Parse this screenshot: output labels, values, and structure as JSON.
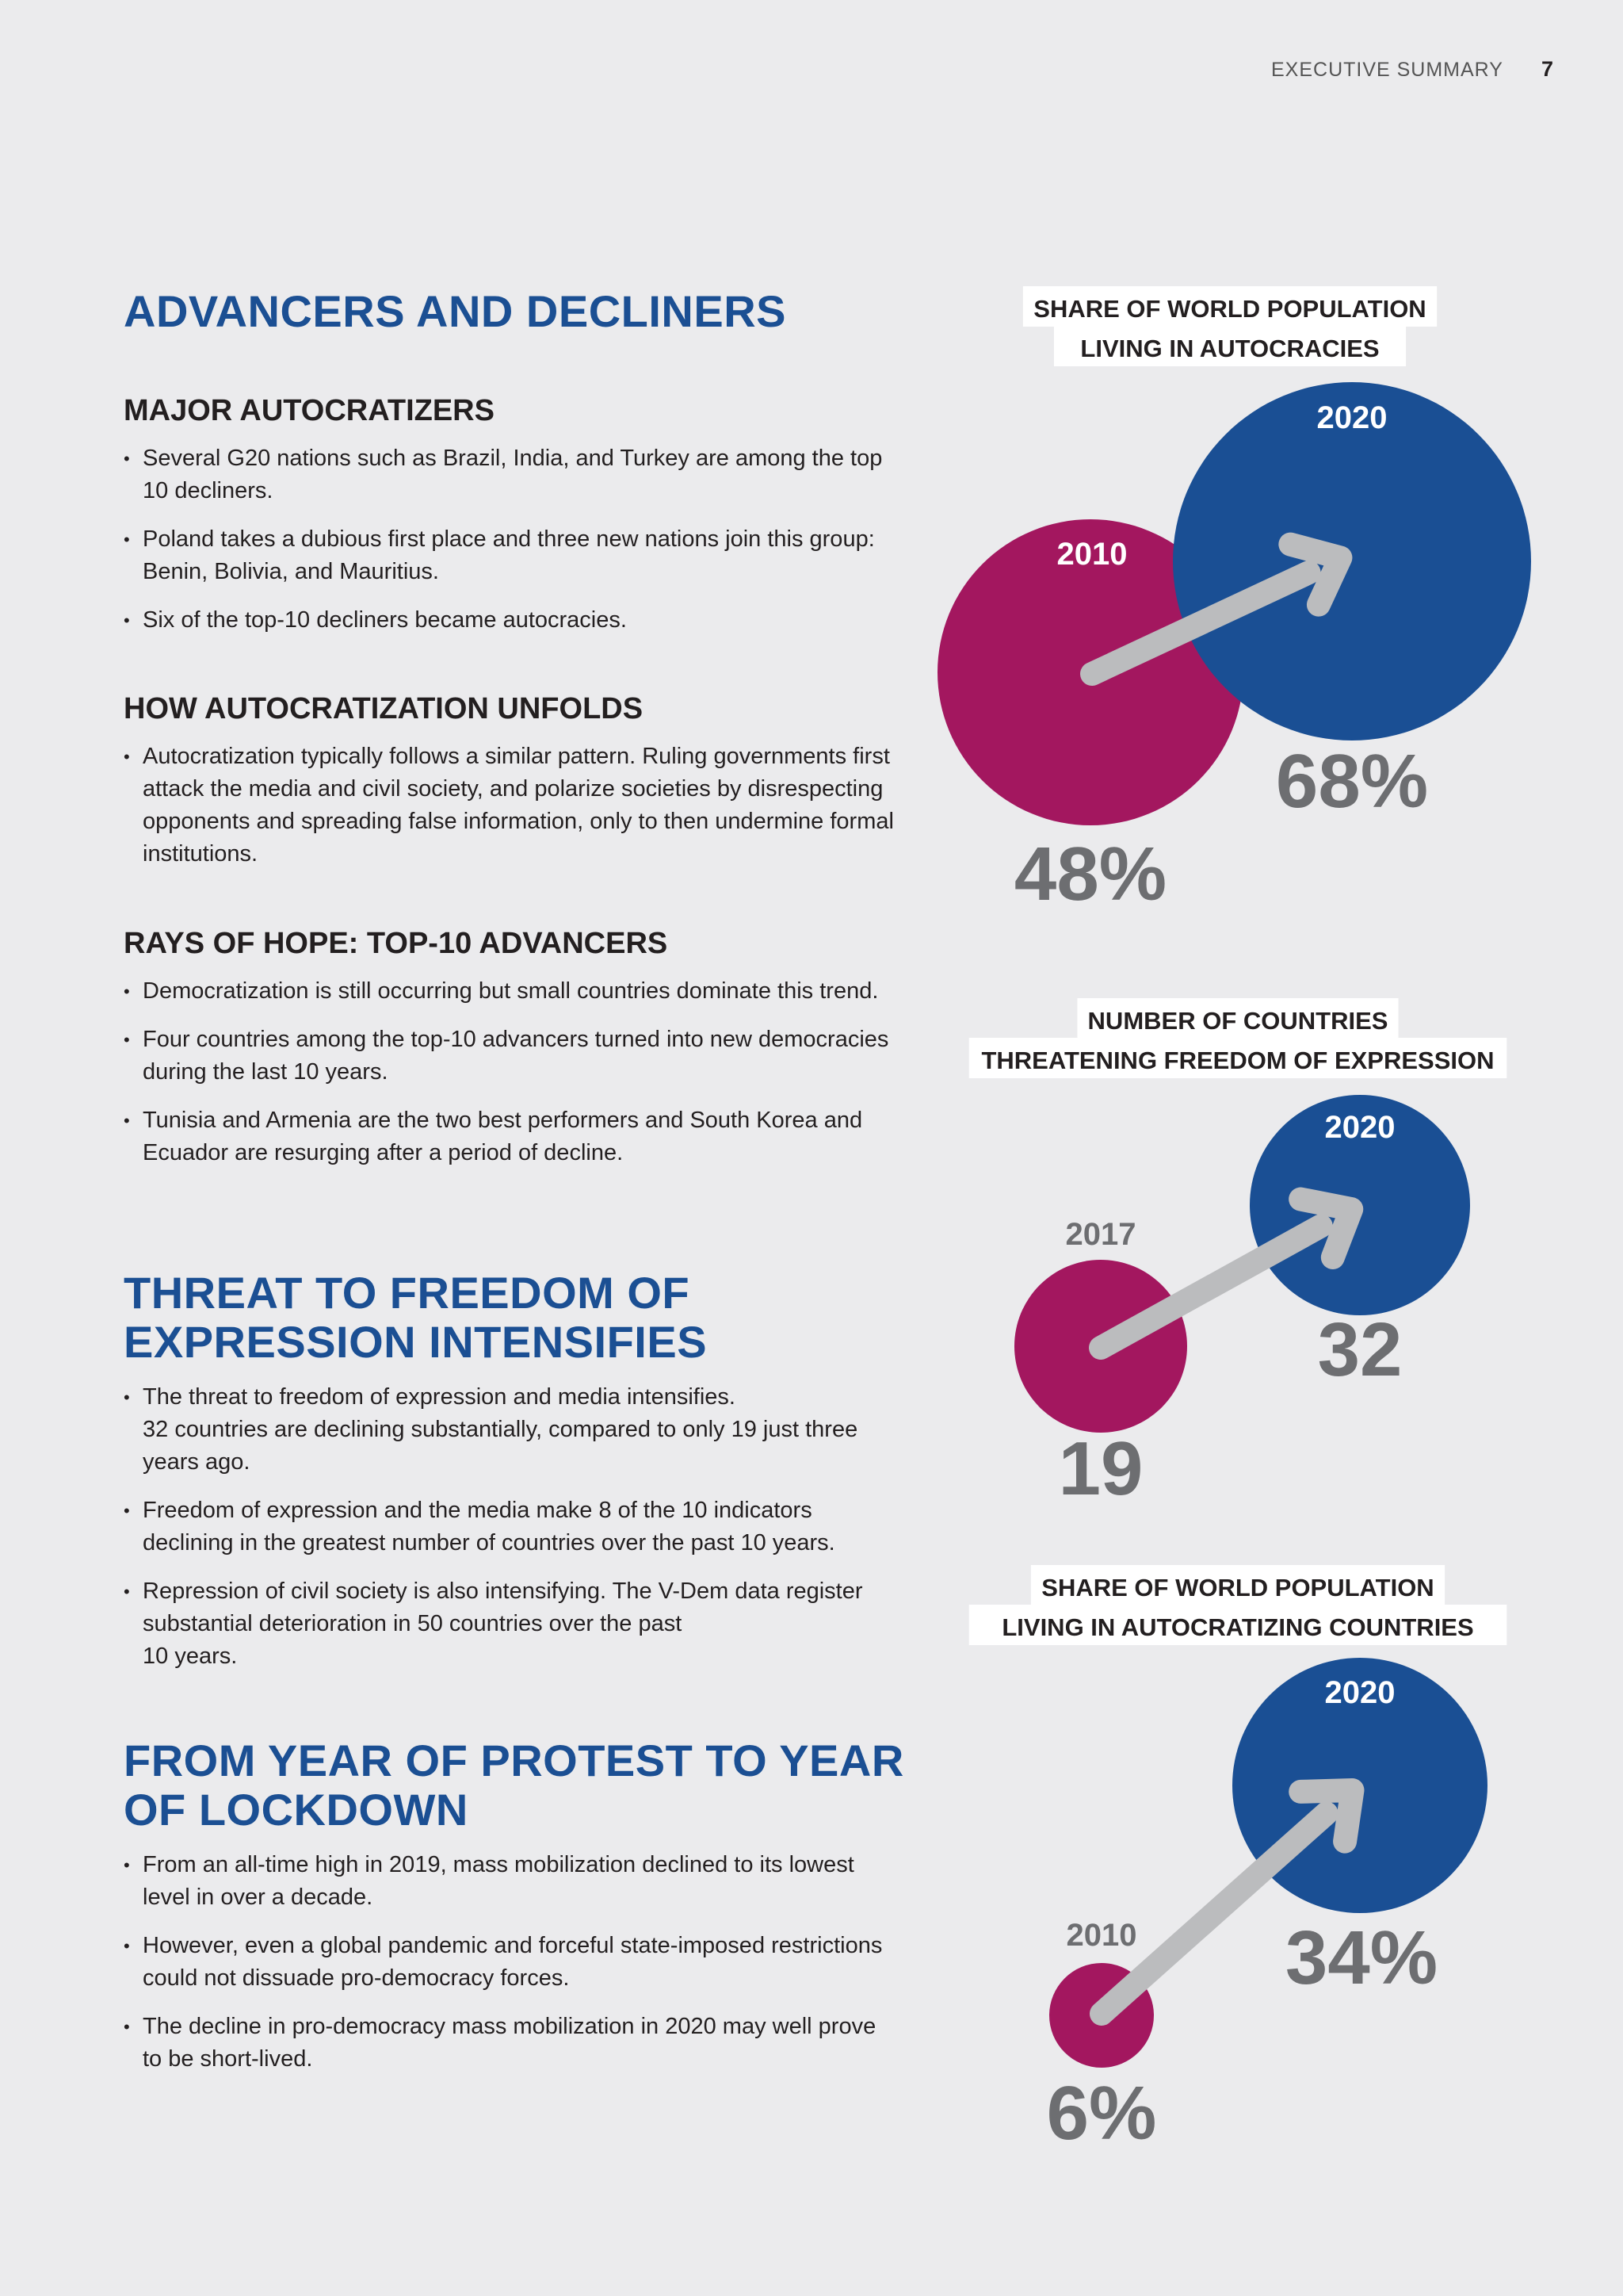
{
  "header": {
    "section": "EXECUTIVE SUMMARY",
    "page_number": "7"
  },
  "left": {
    "advancers": {
      "title": "ADVANCERS AND DECLINERS",
      "major": {
        "title": "MAJOR AUTOCRATIZERS",
        "bullets": [
          "Several G20 nations such as Brazil, India, and Turkey are among the top 10 decliners.",
          "Poland takes a dubious first place and three new nations join this group: Benin, Bolivia, and Mauritius.",
          "Six of the top-10 decliners became autocracies."
        ]
      },
      "how": {
        "title": "HOW AUTOCRATIZATION UNFOLDS",
        "bullets": [
          "Autocratization typically follows a similar pattern. Ruling governments first attack the media and civil society, and polarize societies by disrespecting opponents and spreading false information, only to then undermine formal institutions."
        ]
      },
      "rays": {
        "title": "RAYS OF HOPE: TOP-10 ADVANCERS",
        "bullets": [
          "Democratization is still occurring but small countries dominate this trend.",
          "Four countries among the top-10 advancers turned into new democracies during the last 10 years.",
          "Tunisia and Armenia are the two best performers and South Korea and Ecuador are resurging after a period of decline."
        ]
      }
    },
    "threat": {
      "title_line1": "THREAT TO FREEDOM OF",
      "title_line2": "EXPRESSION INTENSIFIES",
      "bullet1_line1": "The threat to freedom of expression and media intensifies.",
      "bullet1_line2": "32 countries are declining substantially, compared to only 19 just three years ago.",
      "bullets": [
        "Freedom of expression and the media make 8 of the 10 indicators declining in the greatest number of countries over the past 10 years."
      ],
      "bullet3_line1": "Repression of civil society is also intensifying. The V-Dem data register substantial deterioration in 50 countries over the past",
      "bullet3_line2": "10 years."
    },
    "protest": {
      "title_line1": "FROM YEAR OF PROTEST TO YEAR",
      "title_line2": "OF LOCKDOWN",
      "bullets": [
        "From an all-time high in 2019, mass mobilization declined to its lowest level in over a decade.",
        "However, even a global pandemic and forceful state-imposed restrictions could not dissuade pro-democracy forces.",
        "The decline in pro-democracy mass mobilization in 2020 may well prove to be short-lived."
      ]
    }
  },
  "colors": {
    "magenta": "#a3175f",
    "blue": "#1a4f94",
    "arrow": "#bbbcbe",
    "value": "#6d6e71",
    "title_blue": "#1b4f93"
  },
  "chart_data": [
    {
      "type": "bubble-comparison",
      "title_line1": "SHARE OF WORLD POPULATION",
      "title_line2": "LIVING IN AUTOCRACIES",
      "categories": [
        "2010",
        "2020"
      ],
      "values": [
        48,
        68
      ],
      "labels": [
        "48%",
        "68%"
      ],
      "unit": "%"
    },
    {
      "type": "bubble-comparison",
      "title_line1": "NUMBER OF COUNTRIES",
      "title_line2": "THREATENING FREEDOM OF EXPRESSION",
      "categories": [
        "2017",
        "2020"
      ],
      "values": [
        19,
        32
      ],
      "labels": [
        "19",
        "32"
      ],
      "unit": "countries"
    },
    {
      "type": "bubble-comparison",
      "title_line1": "SHARE OF WORLD POPULATION",
      "title_line2": "LIVING IN AUTOCRATIZING COUNTRIES",
      "categories": [
        "2010",
        "2020"
      ],
      "values": [
        6,
        34
      ],
      "labels": [
        "6%",
        "34%"
      ],
      "unit": "%"
    }
  ]
}
